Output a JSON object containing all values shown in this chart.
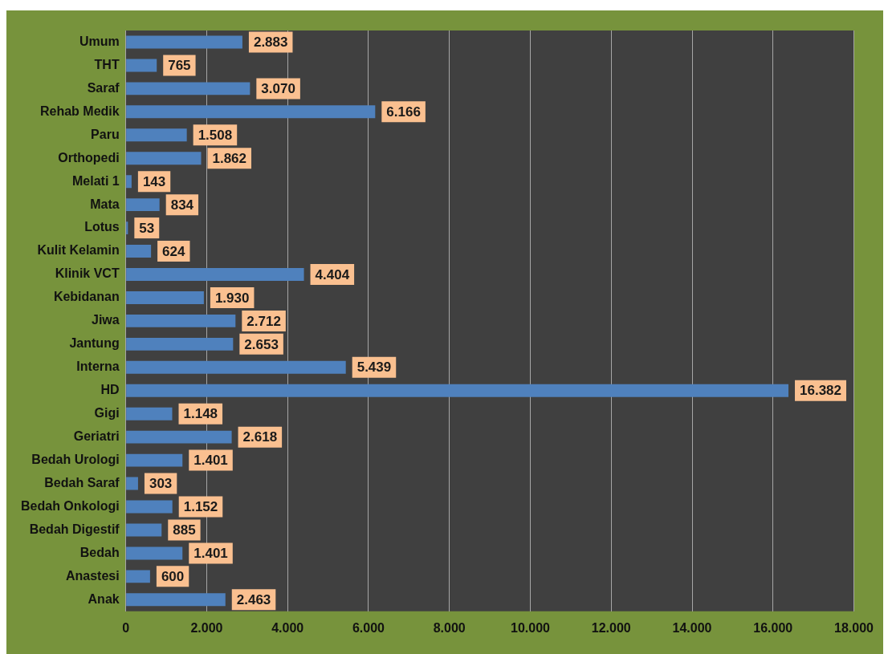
{
  "chart_data": {
    "type": "bar",
    "orientation": "horizontal",
    "categories": [
      "Umum",
      "THT",
      "Saraf",
      "Rehab Medik",
      "Paru",
      "Orthopedi",
      "Melati 1",
      "Mata",
      "Lotus",
      "Kulit Kelamin",
      "Klinik VCT",
      "Kebidanan",
      "Jiwa",
      "Jantung",
      "Interna",
      "HD",
      "Gigi",
      "Geriatri",
      "Bedah Urologi",
      "Bedah Saraf",
      "Bedah Onkologi",
      "Bedah Digestif",
      "Bedah",
      "Anastesi",
      "Anak"
    ],
    "values": [
      2883,
      765,
      3070,
      6166,
      1508,
      1862,
      143,
      834,
      53,
      624,
      4404,
      1930,
      2712,
      2653,
      5439,
      16382,
      1148,
      2618,
      1401,
      303,
      1152,
      885,
      1401,
      600,
      2463
    ],
    "value_labels": [
      "2.883",
      "765",
      "3.070",
      "6.166",
      "1.508",
      "1.862",
      "143",
      "834",
      "53",
      "624",
      "4.404",
      "1.930",
      "2.712",
      "2.653",
      "5.439",
      "16.382",
      "1.148",
      "2.618",
      "1.401",
      "303",
      "1.152",
      "885",
      "1.401",
      "600",
      "2.463"
    ],
    "color": "#4f81bd",
    "xlim": [
      0,
      18000
    ],
    "xticks": [
      0,
      {
        "value": 2000,
        "label": "2.000"
      },
      {
        "value": 4000,
        "label": "4.000"
      },
      {
        "value": 6000,
        "label": "6.000"
      },
      {
        "value": 8000,
        "label": "8.000"
      },
      {
        "value": 10000,
        "label": "10.000"
      },
      {
        "value": 12000,
        "label": "12.000"
      },
      {
        "value": 14000,
        "label": "14.000"
      },
      {
        "value": 16000,
        "label": "16.000"
      },
      {
        "value": 18000,
        "label": "18.000"
      }
    ],
    "grid": "x",
    "legend": false
  }
}
